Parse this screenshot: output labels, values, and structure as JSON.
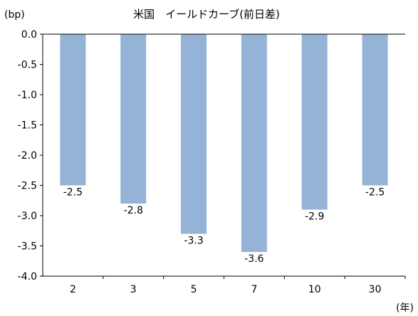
{
  "chart_data": {
    "type": "bar",
    "title": "米国　イールドカーブ(前日差)",
    "ylabel": "(bp)",
    "xlabel": "(年)",
    "categories": [
      "2",
      "3",
      "5",
      "7",
      "10",
      "30"
    ],
    "values": [
      -2.5,
      -2.8,
      -3.3,
      -3.6,
      -2.9,
      -2.5
    ],
    "data_labels": [
      "-2.5",
      "-2.8",
      "-3.3",
      "-3.6",
      "-2.9",
      "-2.5"
    ],
    "yticks": [
      "0.0",
      "-0.5",
      "-1.0",
      "-1.5",
      "-2.0",
      "-2.5",
      "-3.0",
      "-3.5",
      "-4.0"
    ],
    "ylim": [
      -4.0,
      0.0
    ],
    "grid": false,
    "legend": "none",
    "bar_color": "#95B3D7",
    "axis_color": "#000000"
  }
}
